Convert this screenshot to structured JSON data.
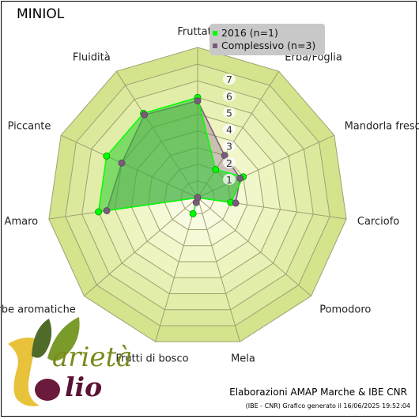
{
  "title": "MINIOL",
  "chart_data": {
    "type": "radar",
    "categories": [
      "Fruttato",
      "Erba/Foglia",
      "Mandorla fresca",
      "Carciofo",
      "Pomodoro",
      "Mela",
      "Frutti di bosco",
      "Erbe aromatiche",
      "Amaro",
      "Piccante",
      "Fluidità"
    ],
    "rlim": [
      0,
      9
    ],
    "rticks": [
      1,
      2,
      3,
      4,
      5,
      6,
      7
    ],
    "series": [
      {
        "name": "2016 (n=1)",
        "color": "#00ff00",
        "values": [
          6,
          2,
          3,
          2,
          0,
          0,
          1,
          0,
          6,
          6,
          6
        ]
      },
      {
        "name": "Complessivo (n=3)",
        "color": "#7d5a7d",
        "values": [
          5.8,
          3,
          2.8,
          2.3,
          0,
          0,
          0.3,
          0,
          5.5,
          5,
          5.9
        ]
      }
    ],
    "legend": "top-right",
    "grid": true
  },
  "footer": {
    "credit": "Elaborazioni AMAP Marche & IBE CNR",
    "note": "(IBE - CNR) Grafico generato il 16/06/2025 19:52:04"
  },
  "logo": {
    "text_1": "arietà",
    "text_2": "lio"
  }
}
